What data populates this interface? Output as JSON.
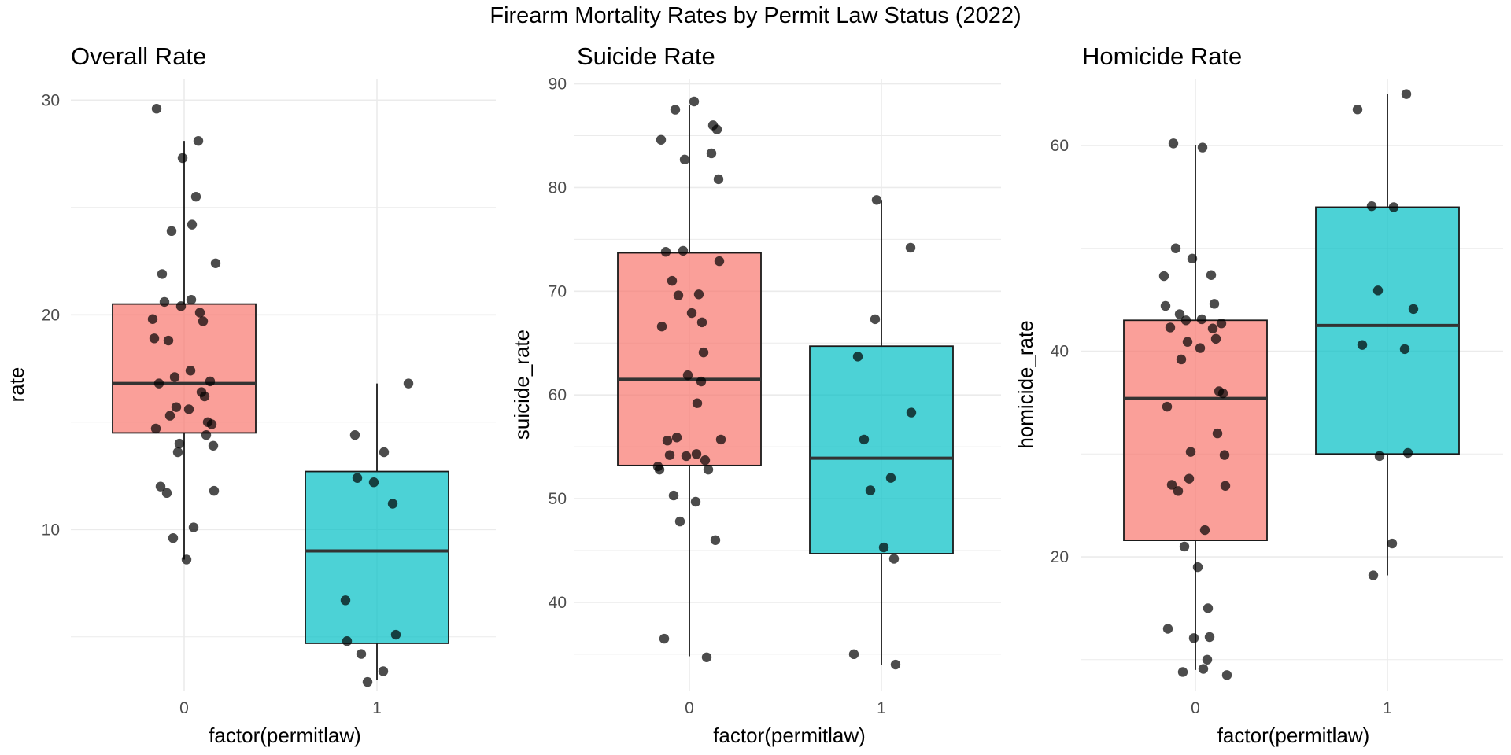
{
  "figure": {
    "title": "Firearm Mortality Rates by Permit Law Status (2022)"
  },
  "colors": {
    "group_0_fill": "#F8766D",
    "group_1_fill": "#00BFC4",
    "point": "#000000",
    "grid": "#EBEBEB",
    "box_outline": "#1A1A1A",
    "median": "#333333"
  },
  "chart_data": [
    {
      "type": "boxplot",
      "title": "Overall Rate",
      "xlabel": "factor(permitlaw)",
      "ylabel": "rate",
      "categories": [
        "0",
        "1"
      ],
      "ylim": [
        2.5,
        31
      ],
      "yticks": [
        10,
        20,
        30
      ],
      "grid": true,
      "legend": "none",
      "boxes": [
        {
          "category": "0",
          "q1": 14.5,
          "median": 16.8,
          "q3": 20.5,
          "whisker_low": 8.6,
          "whisker_high": 28.1
        },
        {
          "category": "1",
          "q1": 4.7,
          "median": 9.0,
          "q3": 12.7,
          "whisker_low": 3.0,
          "whisker_high": 16.8
        }
      ],
      "points": [
        {
          "category": "0",
          "values": [
            29.6,
            28.1,
            27.3,
            25.5,
            24.2,
            23.9,
            22.4,
            21.9,
            20.7,
            20.6,
            20.4,
            20.1,
            19.8,
            19.7,
            18.9,
            18.8,
            17.4,
            17.1,
            16.9,
            16.8,
            16.4,
            16.2,
            15.7,
            15.6,
            15.3,
            15.0,
            14.9,
            14.7,
            14.4,
            14.0,
            13.9,
            13.6,
            12.0,
            11.8,
            11.7,
            10.1,
            9.6,
            8.6
          ]
        },
        {
          "category": "1",
          "values": [
            16.8,
            14.4,
            13.6,
            12.4,
            12.2,
            11.2,
            6.7,
            5.1,
            4.8,
            4.2,
            3.4,
            2.9
          ]
        }
      ]
    },
    {
      "type": "boxplot",
      "title": "Suicide Rate",
      "xlabel": "factor(permitlaw)",
      "ylabel": "suicide_rate",
      "categories": [
        "0",
        "1"
      ],
      "ylim": [
        31.5,
        90.5
      ],
      "yticks": [
        40,
        50,
        60,
        70,
        80,
        90
      ],
      "grid": true,
      "legend": "none",
      "boxes": [
        {
          "category": "0",
          "q1": 53.2,
          "median": 61.5,
          "q3": 73.7,
          "whisker_low": 34.8,
          "whisker_high": 88.0
        },
        {
          "category": "1",
          "q1": 44.7,
          "median": 53.9,
          "q3": 64.7,
          "whisker_low": 34.0,
          "whisker_high": 78.8
        }
      ],
      "points": [
        {
          "category": "0",
          "values": [
            88.3,
            87.5,
            86.0,
            85.6,
            84.6,
            83.3,
            82.7,
            80.8,
            73.9,
            73.8,
            72.9,
            71.0,
            69.7,
            69.6,
            67.9,
            67.0,
            66.6,
            64.1,
            61.9,
            61.3,
            59.2,
            55.9,
            55.7,
            55.6,
            54.3,
            54.2,
            54.1,
            53.7,
            53.1,
            52.8,
            52.8,
            50.3,
            49.7,
            47.8,
            46.0,
            36.5,
            34.7
          ]
        },
        {
          "category": "1",
          "values": [
            78.8,
            74.2,
            67.3,
            63.7,
            58.3,
            55.7,
            52.0,
            50.8,
            45.3,
            44.2,
            35.0,
            34.0
          ]
        }
      ]
    },
    {
      "type": "boxplot",
      "title": "Homicide Rate",
      "xlabel": "factor(permitlaw)",
      "ylabel": "homicide_rate",
      "categories": [
        "0",
        "1"
      ],
      "ylim": [
        7,
        66.5
      ],
      "yticks": [
        20,
        40,
        60
      ],
      "grid": true,
      "legend": "none",
      "boxes": [
        {
          "category": "0",
          "q1": 21.6,
          "median": 35.4,
          "q3": 43.0,
          "whisker_low": 9.0,
          "whisker_high": 60.0
        },
        {
          "category": "1",
          "q1": 30.0,
          "median": 42.5,
          "q3": 54.0,
          "whisker_low": 18.2,
          "whisker_high": 65.0
        }
      ],
      "points": [
        {
          "category": "0",
          "values": [
            60.2,
            59.8,
            50.0,
            49.0,
            47.4,
            47.3,
            44.6,
            44.4,
            43.6,
            43.1,
            43.0,
            42.7,
            42.3,
            42.2,
            41.2,
            40.9,
            40.3,
            39.2,
            36.1,
            35.9,
            34.6,
            32.0,
            30.2,
            29.9,
            27.6,
            27.0,
            26.9,
            26.4,
            22.6,
            21.0,
            19.0,
            15.0,
            13.0,
            12.2,
            12.1,
            10.0,
            9.1,
            8.8,
            8.5
          ]
        },
        {
          "category": "1",
          "values": [
            65.0,
            63.5,
            54.1,
            54.0,
            45.9,
            44.1,
            40.6,
            40.2,
            30.1,
            29.8,
            21.3,
            18.2
          ]
        }
      ]
    }
  ]
}
